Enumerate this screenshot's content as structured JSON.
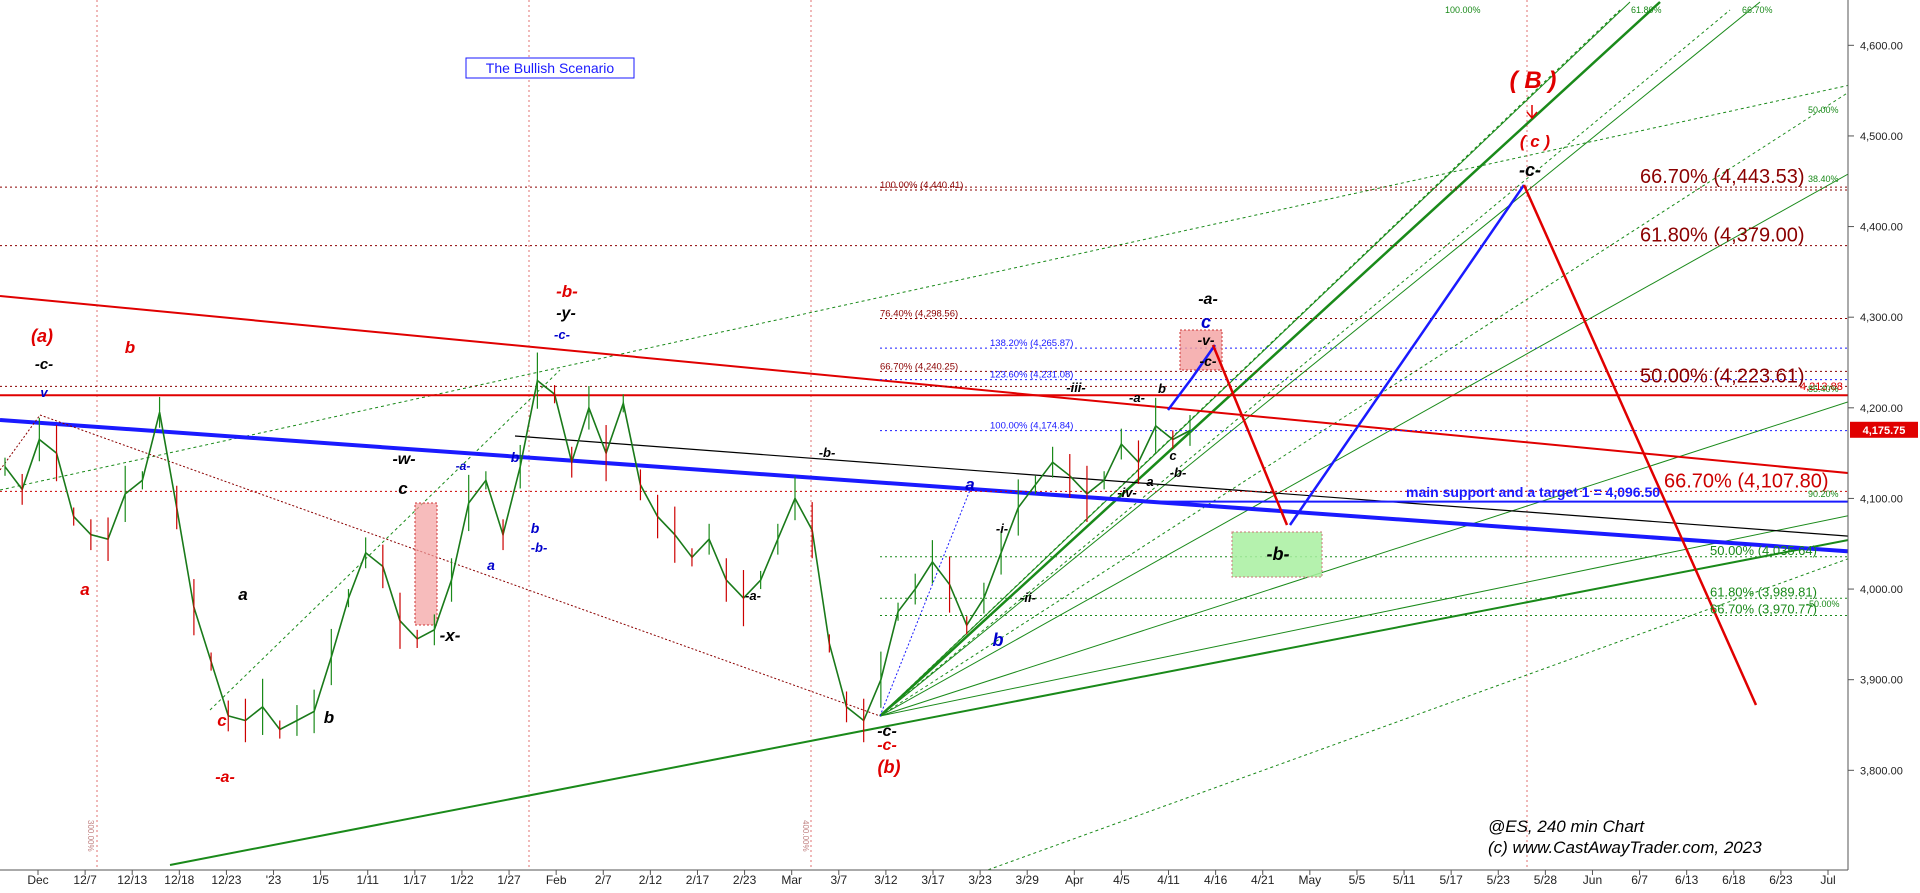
{
  "chart_data": {
    "type": "line",
    "title": "The Bullish Scenario",
    "series_ticker": "@ES, 240 min Chart",
    "copyright": "(c) www.CastAwayTrader.com, 2023",
    "y_ticks": [
      "4,600.00",
      "4,500.00",
      "4,400.00",
      "4,300.00",
      "4,200.00",
      "4,100.00",
      "4,000.00",
      "3,900.00",
      "3,800.00"
    ],
    "y_tick_values": [
      4600,
      4500,
      4400,
      4300,
      4200,
      4100,
      4000,
      3900,
      3800
    ],
    "ylim": [
      3690,
      4650
    ],
    "x_ticks": [
      "Dec",
      "12/7",
      "12/13",
      "12/18",
      "12/23",
      "'23",
      "1/5",
      "1/11",
      "1/17",
      "1/22",
      "1/27",
      "Feb",
      "2/7",
      "2/12",
      "2/17",
      "2/23",
      "Mar",
      "3/7",
      "3/12",
      "3/17",
      "3/23",
      "3/29",
      "Apr",
      "4/5",
      "4/11",
      "4/16",
      "4/21",
      "May",
      "5/5",
      "5/11",
      "5/17",
      "5/23",
      "5/28",
      "Jun",
      "6/7",
      "6/13",
      "6/18",
      "6/23",
      "Jul"
    ],
    "last_price_label": "4,175.75",
    "last_price": 4175.75,
    "price_path": [
      [
        0,
        4135
      ],
      [
        1,
        4110
      ],
      [
        2,
        4165
      ],
      [
        3,
        4150
      ],
      [
        4,
        4080
      ],
      [
        5,
        4060
      ],
      [
        6,
        4055
      ],
      [
        7,
        4105
      ],
      [
        8,
        4120
      ],
      [
        9,
        4195
      ],
      [
        10,
        4090
      ],
      [
        11,
        3980
      ],
      [
        12,
        3920
      ],
      [
        13,
        3860
      ],
      [
        14,
        3855
      ],
      [
        15,
        3870
      ],
      [
        16,
        3845
      ],
      [
        17,
        3855
      ],
      [
        18,
        3865
      ],
      [
        19,
        3925
      ],
      [
        20,
        3990
      ],
      [
        21,
        4040
      ],
      [
        22,
        4025
      ],
      [
        23,
        3965
      ],
      [
        24,
        3945
      ],
      [
        25,
        3955
      ],
      [
        26,
        4010
      ],
      [
        27,
        4095
      ],
      [
        28,
        4120
      ],
      [
        29,
        4060
      ],
      [
        30,
        4135
      ],
      [
        31,
        4230
      ],
      [
        32,
        4215
      ],
      [
        33,
        4140
      ],
      [
        34,
        4200
      ],
      [
        35,
        4150
      ],
      [
        36,
        4205
      ],
      [
        37,
        4115
      ],
      [
        38,
        4080
      ],
      [
        39,
        4060
      ],
      [
        40,
        4035
      ],
      [
        41,
        4055
      ],
      [
        42,
        4010
      ],
      [
        43,
        3990
      ],
      [
        44,
        4010
      ],
      [
        45,
        4055
      ],
      [
        46,
        4100
      ],
      [
        47,
        4065
      ],
      [
        48,
        3940
      ],
      [
        49,
        3870
      ],
      [
        50,
        3855
      ],
      [
        51,
        3900
      ],
      [
        52,
        3975
      ],
      [
        53,
        4000
      ],
      [
        54,
        4030
      ],
      [
        55,
        4005
      ],
      [
        56,
        3960
      ],
      [
        57,
        3990
      ],
      [
        58,
        4040
      ],
      [
        59,
        4090
      ],
      [
        60,
        4115
      ],
      [
        61,
        4140
      ],
      [
        62,
        4125
      ],
      [
        63,
        4105
      ],
      [
        64,
        4120
      ],
      [
        65,
        4160
      ],
      [
        66,
        4140
      ],
      [
        67,
        4180
      ],
      [
        68,
        4165
      ],
      [
        69,
        4175
      ]
    ],
    "price_x_range": [
      0,
      69
    ],
    "fib_levels_right": [
      {
        "label": "66.70% (4,443.53)",
        "value": 4443.53,
        "color": "#8b0000"
      },
      {
        "label": "61.80% (4,379.00)",
        "value": 4379.0,
        "color": "#8b0000"
      },
      {
        "label": "50.00% (4,223.61)",
        "value": 4223.61,
        "color": "#8b0000"
      },
      {
        "label": "66.70% (4,107.80)",
        "value": 4107.8,
        "color": "#cc0000"
      }
    ],
    "fib_levels_small": [
      {
        "label": "100.00% (4,440.41)",
        "value": 4440.41,
        "color": "#8b0000"
      },
      {
        "label": "76.40% (4,298.56)",
        "value": 4298.56,
        "color": "#8b0000"
      },
      {
        "label": "66.70% (4,240.25)",
        "value": 4240.25,
        "color": "#8b0000"
      },
      {
        "label": "138.20% (4,265.87)",
        "value": 4265.87,
        "color": "#1a1aff"
      },
      {
        "label": "123.60% (4,231.08)",
        "value": 4231.08,
        "color": "#1a1aff"
      },
      {
        "label": "100.00% (4,174.84)",
        "value": 4174.84,
        "color": "#1a1aff"
      }
    ],
    "fib_levels_green": [
      {
        "label": "50.00% (4,035.64)",
        "value": 4035.64
      },
      {
        "label": "61.80% (3,989.81)",
        "value": 3989.81
      },
      {
        "label": "66.70% (3,970.77)",
        "value": 3970.77
      }
    ],
    "red_level": {
      "label": "4,213.88",
      "value": 4213.88
    },
    "support_label": "main support and a target 1 = 4,096.50",
    "support_value": 4096.5,
    "fan_labels": [
      "100.00%",
      "61.80%",
      "66.70%",
      "50.00%",
      "38.40%",
      "85.40%",
      "90.20%",
      "-50.00%"
    ],
    "vertical_labels": [
      "300.00%",
      "400.00%"
    ],
    "wave_labels": [
      {
        "text": "(a)",
        "color": "#e00000"
      },
      {
        "text": "-c-",
        "color": "#000000"
      },
      {
        "text": "v",
        "color": "#0000cc"
      },
      {
        "text": "b",
        "color": "#e00000"
      },
      {
        "text": "a",
        "color": "#e00000"
      },
      {
        "text": "a",
        "color": "#000000"
      },
      {
        "text": "c",
        "color": "#e00000"
      },
      {
        "text": "-a-",
        "color": "#e00000"
      },
      {
        "text": "b",
        "color": "#000000"
      },
      {
        "text": "-w-",
        "color": "#000000"
      },
      {
        "text": "c",
        "color": "#000000"
      },
      {
        "text": "-x-",
        "color": "#000000"
      },
      {
        "text": "-a-",
        "color": "#0000cc"
      },
      {
        "text": "b",
        "color": "#0000cc"
      },
      {
        "text": "a",
        "color": "#0000cc"
      },
      {
        "text": "b",
        "color": "#0000cc"
      },
      {
        "text": "-b-",
        "color": "#0000cc"
      },
      {
        "text": "-b-",
        "color": "#e00000"
      },
      {
        "text": "-y-",
        "color": "#000000"
      },
      {
        "text": "-c-",
        "color": "#0000cc"
      },
      {
        "text": "-b-",
        "color": "#000000"
      },
      {
        "text": "-a-",
        "color": "#000000"
      },
      {
        "text": "-c-",
        "color": "#000000"
      },
      {
        "text": "-c-",
        "color": "#e00000"
      },
      {
        "text": "(b)",
        "color": "#e00000"
      },
      {
        "text": "a",
        "color": "#0000cc"
      },
      {
        "text": "b",
        "color": "#0000cc"
      },
      {
        "text": "-i-",
        "color": "#000000"
      },
      {
        "text": "-ii-",
        "color": "#000000"
      },
      {
        "text": "-iii-",
        "color": "#000000"
      },
      {
        "text": "-iv-",
        "color": "#000000"
      },
      {
        "text": "-a-",
        "color": "#000000"
      },
      {
        "text": "b",
        "color": "#000000"
      },
      {
        "text": "c",
        "color": "#000000"
      },
      {
        "text": "a",
        "color": "#000000"
      },
      {
        "text": "-b-",
        "color": "#000000"
      },
      {
        "text": "-a-",
        "color": "#000000"
      },
      {
        "text": "c",
        "color": "#0000cc"
      },
      {
        "text": "-v-",
        "color": "#000000"
      },
      {
        "text": "-c-",
        "color": "#000000"
      },
      {
        "text": "-b-",
        "color": "#000000"
      },
      {
        "text": "( B )",
        "color": "#e00000"
      },
      {
        "text": "( c )",
        "color": "#e00000"
      },
      {
        "text": "-c-",
        "color": "#000000"
      }
    ],
    "colors": {
      "red": "#e00000",
      "blue": "#1a1aff",
      "green": "#1a8a1a",
      "darkred": "#8b0000"
    }
  }
}
